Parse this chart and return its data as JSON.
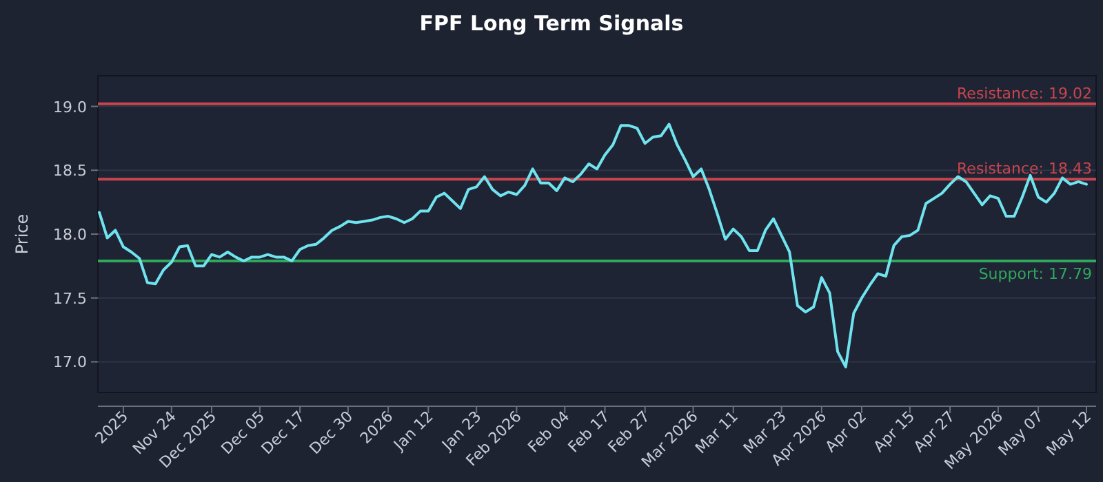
{
  "chart_data": {
    "type": "line",
    "title": "FPF Long Term Signals",
    "ylabel": "Price",
    "categories": [
      null,
      null,
      null,
      "2025",
      null,
      null,
      null,
      null,
      null,
      "Nov 24",
      null,
      null,
      null,
      null,
      "Dec 2025",
      null,
      null,
      null,
      null,
      null,
      "Dec 05",
      null,
      null,
      null,
      null,
      "Dec 17",
      null,
      null,
      null,
      null,
      null,
      "Dec 30",
      null,
      null,
      null,
      null,
      "2026",
      null,
      null,
      null,
      null,
      "Jan 12",
      null,
      null,
      null,
      null,
      null,
      "Jan 23",
      null,
      null,
      null,
      null,
      "Feb 2026",
      null,
      null,
      null,
      null,
      null,
      "Feb 04",
      null,
      null,
      null,
      null,
      "Feb 17",
      null,
      null,
      null,
      null,
      "Feb 27",
      null,
      null,
      null,
      null,
      null,
      "Mar 2026",
      null,
      null,
      null,
      null,
      "Mar 11",
      null,
      null,
      null,
      null,
      null,
      "Mar 23",
      null,
      null,
      null,
      null,
      "Apr 2026",
      null,
      null,
      null,
      null,
      "Apr 02",
      null,
      null,
      null,
      null,
      null,
      "Apr 15",
      null,
      null,
      null,
      null,
      "Apr 27",
      null,
      null,
      null,
      null,
      null,
      "May 2026",
      null,
      null,
      null,
      null,
      "May 07",
      null,
      null,
      null,
      null,
      null,
      "May 12"
    ],
    "series": [
      {
        "color": "#6fe3ee",
        "values": [
          18.17,
          17.97,
          18.03,
          17.9,
          17.86,
          17.81,
          17.62,
          17.61,
          17.72,
          17.78,
          17.9,
          17.91,
          17.75,
          17.75,
          17.84,
          17.82,
          17.86,
          17.82,
          17.79,
          17.82,
          17.82,
          17.84,
          17.82,
          17.82,
          17.79,
          17.88,
          17.91,
          17.92,
          17.97,
          18.03,
          18.06,
          18.1,
          18.09,
          18.1,
          18.11,
          18.13,
          18.14,
          18.12,
          18.09,
          18.12,
          18.18,
          18.18,
          18.29,
          18.32,
          18.26,
          18.2,
          18.35,
          18.37,
          18.45,
          18.35,
          18.3,
          18.33,
          18.31,
          18.38,
          18.51,
          18.4,
          18.4,
          18.34,
          18.44,
          18.41,
          18.47,
          18.55,
          18.51,
          18.62,
          18.7,
          18.85,
          18.85,
          18.83,
          18.71,
          18.76,
          18.77,
          18.86,
          18.7,
          18.58,
          18.45,
          18.51,
          18.35,
          18.16,
          17.96,
          18.04,
          17.98,
          17.87,
          17.87,
          18.03,
          18.12,
          17.99,
          17.86,
          17.44,
          17.39,
          17.43,
          17.66,
          17.54,
          17.08,
          16.96,
          17.38,
          17.5,
          17.6,
          17.69,
          17.67,
          17.91,
          17.98,
          17.99,
          18.03,
          18.24,
          18.28,
          18.32,
          18.39,
          18.45,
          18.41,
          18.32,
          18.23,
          18.3,
          18.28,
          18.14,
          18.14,
          18.29,
          18.46,
          18.29,
          18.25,
          18.32,
          18.44,
          18.39,
          18.41,
          18.39
        ]
      }
    ],
    "ylim": [
      16.76,
      19.24
    ],
    "yticks": [
      {
        "value": 17,
        "label": "17.0"
      },
      {
        "value": 17.5,
        "label": "17.5"
      },
      {
        "value": 18,
        "label": "18.0"
      },
      {
        "value": 18.5,
        "label": "18.5"
      },
      {
        "value": 19,
        "label": "19.0"
      }
    ],
    "grid": "y",
    "marker": "none",
    "line_style": "solid",
    "ref_lines": [
      {
        "axis": "y",
        "value": 19.02,
        "label": "Resistance: 19.02",
        "color": "#c8454d"
      },
      {
        "axis": "y",
        "value": 18.43,
        "label": "Resistance: 18.43",
        "color": "#c8454d"
      },
      {
        "axis": "y",
        "value": 17.79,
        "label": "Support: 17.79",
        "color": "#2fa85c"
      }
    ]
  }
}
